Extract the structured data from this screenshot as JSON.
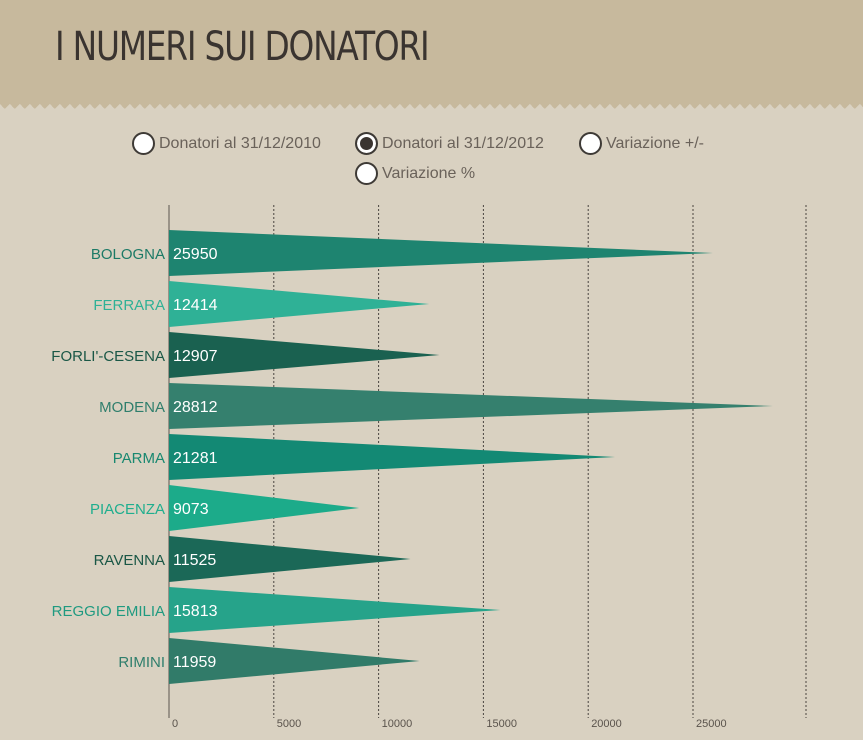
{
  "page": {
    "title": "I NUMERI SUI DONATORI"
  },
  "radio_options": [
    {
      "label": "Donatori al 31/12/2010",
      "checked": false
    },
    {
      "label": "Donatori al 31/12/2012",
      "checked": true
    },
    {
      "label": "Variazione +/-",
      "checked": false
    },
    {
      "label": "Variazione %",
      "checked": false
    }
  ],
  "chart_data": {
    "type": "bar",
    "orientation": "horizontal",
    "bar_shape": "triangle",
    "categories": [
      "BOLOGNA",
      "FERRARA",
      "FORLI'-CESENA",
      "MODENA",
      "PARMA",
      "PIACENZA",
      "RAVENNA",
      "REGGIO EMILIA",
      "RIMINI"
    ],
    "values": [
      25950,
      12414,
      12907,
      28812,
      21281,
      9073,
      11525,
      15813,
      11959
    ],
    "xlim": [
      0,
      30000
    ],
    "x_ticks": [
      0,
      5000,
      10000,
      15000,
      20000,
      25000
    ],
    "grid": true,
    "colors": [
      "#1e8470",
      "#2fb196",
      "#1a6150",
      "#35806e",
      "#138974",
      "#1cab8a",
      "#1b6857",
      "#26a38a",
      "#317b69"
    ],
    "label_colors": [
      "#1c7a66",
      "#2fb196",
      "#1a5746",
      "#2f7e6c",
      "#188870",
      "#1fae8e",
      "#1a5746",
      "#1f9a80",
      "#2f7e6c"
    ]
  }
}
